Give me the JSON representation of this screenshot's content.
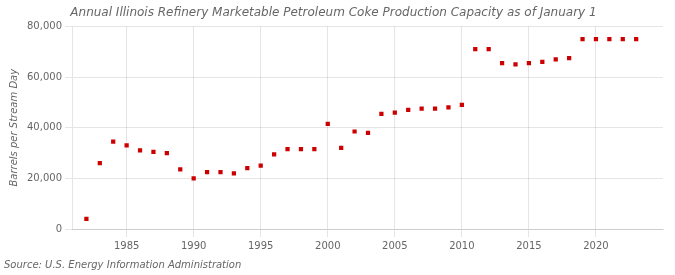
{
  "chart_data": {
    "type": "scatter",
    "title": "Annual Illinois Refinery Marketable Petroleum Coke Production Capacity as of January 1",
    "y_label": "Barrels per Stream Day",
    "annotations": [
      "Source: U.S. Energy Information Administration"
    ],
    "x": [
      1982,
      1983,
      1984,
      1985,
      1986,
      1987,
      1988,
      1989,
      1990,
      1991,
      1992,
      1993,
      1994,
      1995,
      1996,
      1997,
      1998,
      1999,
      2000,
      2001,
      2002,
      2003,
      2004,
      2005,
      2006,
      2007,
      2008,
      2009,
      2010,
      2011,
      2012,
      2013,
      2014,
      2015,
      2016,
      2017,
      2018,
      2019,
      2020,
      2021,
      2022,
      2023
    ],
    "values": [
      4000,
      26000,
      34500,
      33000,
      31000,
      30500,
      30000,
      23500,
      20000,
      22500,
      22500,
      22000,
      24000,
      25000,
      29500,
      31500,
      31500,
      31500,
      41500,
      32000,
      38500,
      38000,
      45500,
      46000,
      47000,
      47500,
      47500,
      48000,
      49000,
      71000,
      71000,
      65500,
      65000,
      65500,
      66000,
      67000,
      67500,
      75000,
      75000,
      75000,
      75000,
      75000
    ],
    "color": "#cc0000",
    "marker": "square",
    "xlim": [
      1981,
      2025
    ],
    "xticks": [
      1985,
      1990,
      1995,
      2000,
      2005,
      2010,
      2015,
      2020
    ],
    "ylim": [
      0,
      80000
    ],
    "yticks": [
      0,
      {
        "value": 20000,
        "label": "20,000"
      },
      {
        "value": 40000,
        "label": "40,000"
      },
      {
        "value": 60000,
        "label": "60,000"
      },
      {
        "value": 80000,
        "label": "80,000"
      }
    ],
    "grid": true
  }
}
